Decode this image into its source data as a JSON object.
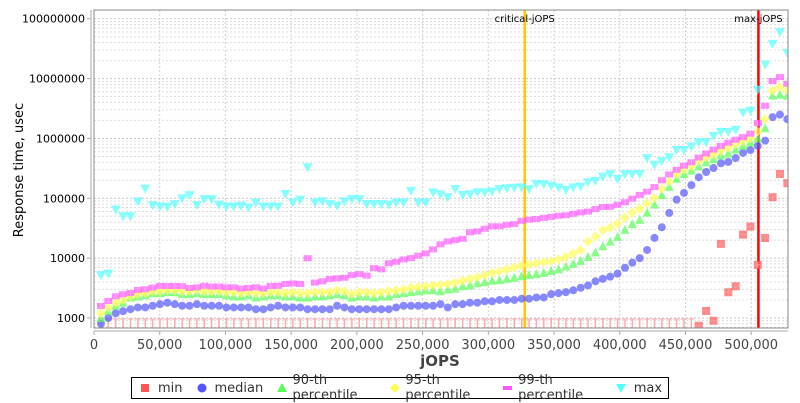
{
  "chart_data": {
    "type": "scatter",
    "title": "",
    "xlabel": "jOPS",
    "ylabel": "Response time, usec",
    "xlim": [
      0,
      528000
    ],
    "ylim": [
      680,
      140000000
    ],
    "yscale": "log",
    "grid": true,
    "legend_placement": "bottom",
    "x_start": 5300,
    "x_step": 5615,
    "x_ticks": [
      0,
      50000,
      100000,
      150000,
      200000,
      250000,
      300000,
      350000,
      400000,
      450000,
      500000
    ],
    "x_tick_labels": [
      "0",
      "50,000",
      "100,000",
      "150,000",
      "200,000",
      "250,000",
      "300,000",
      "350,000",
      "400,000",
      "450,000",
      "500,000"
    ],
    "y_ticks": [
      1000,
      10000,
      100000,
      1000000,
      10000000,
      100000000
    ],
    "y_tick_labels": [
      "1000",
      "10000",
      "100000",
      "1000000",
      "10000000",
      "100000000"
    ],
    "annotations": [
      {
        "label": "critical-jOPS",
        "x": 327700,
        "color": "#ffc800"
      },
      {
        "label": "max-jOPS",
        "x": 505500,
        "color": "#ff0000"
      }
    ],
    "series": [
      {
        "name": "min",
        "color": "#ff5555",
        "marker": "square",
        "values": [
          500,
          500,
          500,
          500,
          500,
          500,
          500,
          500,
          500,
          500,
          500,
          500,
          500,
          500,
          500,
          500,
          500,
          500,
          500,
          500,
          500,
          500,
          500,
          500,
          500,
          500,
          500,
          500,
          500,
          500,
          500,
          500,
          500,
          500,
          500,
          500,
          500,
          500,
          500,
          500,
          500,
          500,
          500,
          500,
          500,
          500,
          500,
          500,
          500,
          500,
          500,
          500,
          500,
          500,
          500,
          500,
          500,
          500,
          500,
          500,
          500,
          500,
          500,
          500,
          500,
          500,
          500,
          500,
          500,
          500,
          500,
          500,
          500,
          500,
          500,
          500,
          500,
          500,
          500,
          500,
          500,
          740,
          1310,
          900,
          17300,
          2690,
          3390,
          24700,
          33700,
          7700,
          21700,
          104000,
          255000,
          179000
        ]
      },
      {
        "name": "median",
        "color": "#5555ff",
        "marker": "circle",
        "values": [
          800,
          1000,
          1200,
          1300,
          1400,
          1500,
          1500,
          1600,
          1700,
          1800,
          1700,
          1600,
          1600,
          1700,
          1600,
          1600,
          1600,
          1500,
          1500,
          1500,
          1500,
          1400,
          1400,
          1500,
          1600,
          1500,
          1500,
          1500,
          1400,
          1400,
          1400,
          1400,
          1600,
          1500,
          1400,
          1400,
          1400,
          1400,
          1400,
          1400,
          1500,
          1600,
          1600,
          1600,
          1600,
          1600,
          1700,
          1500,
          1700,
          1700,
          1800,
          1800,
          1900,
          1900,
          2000,
          2000,
          2000,
          2100,
          2100,
          2200,
          2200,
          2500,
          2600,
          2700,
          2900,
          3200,
          3500,
          4100,
          4500,
          4900,
          5500,
          6900,
          8400,
          10000,
          13700,
          21800,
          32800,
          57000,
          95000,
          123000,
          166000,
          225000,
          275000,
          320000,
          385000,
          405000,
          470000,
          575000,
          640000,
          750000,
          920000,
          2270000,
          2500000,
          2100000
        ]
      },
      {
        "name": "90-th percentile",
        "color": "#55ff55",
        "marker": "triangle-up",
        "values": [
          1000,
          1300,
          1600,
          1800,
          2200,
          2300,
          2400,
          2600,
          2600,
          2700,
          2700,
          2500,
          2500,
          2600,
          2500,
          2500,
          2500,
          2400,
          2300,
          2300,
          2400,
          2200,
          2300,
          2400,
          2400,
          2300,
          2300,
          2200,
          2200,
          2300,
          2300,
          2400,
          2500,
          2400,
          2200,
          2300,
          2300,
          2200,
          2300,
          2300,
          2500,
          2600,
          2700,
          2800,
          2900,
          2900,
          2800,
          3000,
          3100,
          3400,
          3500,
          3800,
          4000,
          4200,
          4300,
          4500,
          4700,
          5000,
          5200,
          5400,
          5700,
          6100,
          6500,
          7200,
          8000,
          9000,
          10500,
          12500,
          15800,
          18900,
          22700,
          29600,
          37000,
          43500,
          57600,
          78500,
          113000,
          155000,
          212000,
          255000,
          290000,
          340000,
          400000,
          450000,
          520000,
          560000,
          650000,
          750000,
          850000,
          1000000,
          1480000,
          5200000,
          5400000,
          5200000
        ]
      },
      {
        "name": "95-th percentile",
        "color": "#ffff55",
        "marker": "diamond",
        "values": [
          1200,
          1500,
          1800,
          2000,
          2300,
          2500,
          2600,
          2800,
          2800,
          2900,
          2900,
          2800,
          2800,
          2900,
          2800,
          2800,
          2800,
          2700,
          2700,
          2600,
          2700,
          2600,
          2600,
          2700,
          2700,
          2600,
          2700,
          2600,
          2600,
          2700,
          2700,
          2700,
          2900,
          2800,
          2500,
          2700,
          2700,
          2600,
          2700,
          2800,
          2900,
          3000,
          3200,
          3300,
          3400,
          3500,
          3600,
          3700,
          3900,
          4200,
          4500,
          4800,
          5200,
          5700,
          6000,
          6500,
          7000,
          7500,
          7800,
          8200,
          8600,
          8900,
          9500,
          10500,
          12000,
          13700,
          19000,
          23000,
          29300,
          32400,
          38000,
          47500,
          57600,
          67000,
          82600,
          102000,
          145000,
          190000,
          255000,
          300000,
          350000,
          420000,
          480000,
          540000,
          620000,
          700000,
          800000,
          900000,
          1000000,
          1300000,
          2100000,
          6300000,
          7200000,
          6300000
        ]
      },
      {
        "name": "99-th percentile",
        "color": "#ff55ff",
        "marker": "rect",
        "values": [
          1590,
          1920,
          2300,
          2490,
          2620,
          2940,
          3020,
          3210,
          3430,
          3430,
          3430,
          3400,
          3170,
          3250,
          3450,
          3350,
          3350,
          3250,
          3250,
          3100,
          3170,
          3250,
          3100,
          3430,
          3450,
          3700,
          3780,
          3700,
          9960,
          3900,
          4100,
          4500,
          4600,
          4700,
          5200,
          5400,
          5100,
          6800,
          6500,
          8200,
          8700,
          9500,
          10000,
          11000,
          12000,
          14000,
          17000,
          19000,
          20000,
          21000,
          27000,
          28000,
          31000,
          34000,
          34000,
          36000,
          37000,
          42000,
          44000,
          45000,
          47000,
          49000,
          51000,
          52000,
          55000,
          58000,
          60000,
          66000,
          71500,
          72000,
          78000,
          86000,
          98500,
          114000,
          129000,
          154000,
          200000,
          250000,
          300000,
          350000,
          400000,
          480000,
          560000,
          650000,
          750000,
          850000,
          950000,
          1050000,
          1200000,
          1800000,
          3500000,
          9100000,
          10600000,
          8200000
        ]
      },
      {
        "name": "max",
        "color": "#55ffff",
        "marker": "triangle-down",
        "values": [
          5200,
          5500,
          65000,
          50000,
          50000,
          89000,
          145000,
          76000,
          73000,
          72000,
          80000,
          100000,
          113000,
          77000,
          97000,
          97000,
          78000,
          73000,
          73000,
          75000,
          70000,
          85000,
          73000,
          73000,
          73000,
          118000,
          85000,
          95000,
          330000,
          85000,
          89000,
          80000,
          75000,
          89000,
          97000,
          97000,
          80000,
          80000,
          80000,
          78000,
          85000,
          85000,
          133000,
          85000,
          85000,
          125000,
          117000,
          104000,
          143000,
          114000,
          117000,
          126000,
          125000,
          130000,
          143000,
          147000,
          150000,
          152000,
          143000,
          174000,
          172000,
          162000,
          152000,
          138000,
          152000,
          157000,
          186000,
          195000,
          230000,
          252000,
          211000,
          252000,
          252000,
          255000,
          468000,
          363000,
          420000,
          486000,
          640000,
          640000,
          735000,
          862000,
          862000,
          1100000,
          1290000,
          1290000,
          1400000,
          2700000,
          2900000,
          6500000,
          17000000,
          38000000,
          60000000,
          27000000
        ]
      }
    ]
  }
}
